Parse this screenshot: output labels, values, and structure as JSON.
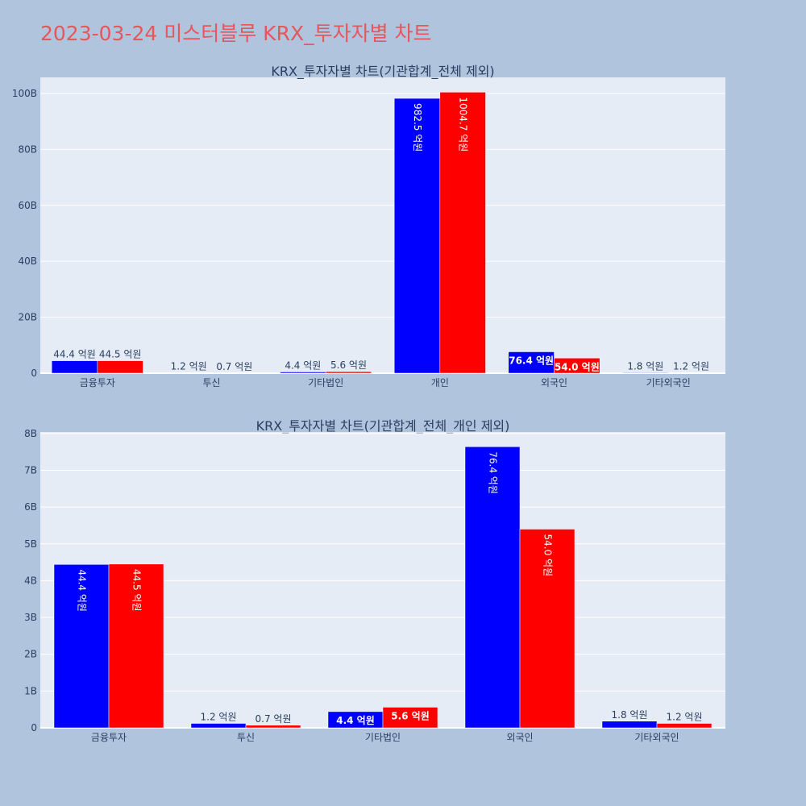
{
  "title": "2023-03-24 미스터블루 KRX_투자자별 차트",
  "colors": {
    "buy": "#0000ff",
    "sell": "#ff0000",
    "plot_bg": "#e5ecf6",
    "page_bg": "#b0c4de",
    "title": "#e8555a",
    "axis_text": "#2a3f5f"
  },
  "chart_data": [
    {
      "type": "bar",
      "title": "KRX_투자자별 차트(기관합계_전체 제외)",
      "categories": [
        "금융투자",
        "투신",
        "기타법인",
        "개인",
        "외국인",
        "기타외국인"
      ],
      "series": [
        {
          "color": "#0000ff",
          "values": [
            4.44,
            0.12,
            0.44,
            98.25,
            7.64,
            0.18
          ],
          "labels": [
            "44.4 억원",
            "1.2 억원",
            "4.4 억원",
            "982.5 억원",
            "76.4 억원",
            "1.8 억원"
          ]
        },
        {
          "color": "#ff0000",
          "values": [
            4.45,
            0.07,
            0.56,
            100.47,
            5.4,
            0.12
          ],
          "labels": [
            "44.5 억원",
            "0.7 억원",
            "5.6 억원",
            "1004.7 억원",
            "54.0 억원",
            "1.2 억원"
          ]
        }
      ],
      "yticks": [
        0,
        20,
        40,
        60,
        80,
        100
      ],
      "ytick_labels": [
        "0",
        "20B",
        "40B",
        "60B",
        "80B",
        "100B"
      ],
      "ylim": [
        0,
        105.76
      ],
      "grid": true
    },
    {
      "type": "bar",
      "title": "KRX_투자자별 차트(기관합계_전체_개인 제외)",
      "categories": [
        "금융투자",
        "투신",
        "기타법인",
        "외국인",
        "기타외국인"
      ],
      "series": [
        {
          "color": "#0000ff",
          "values": [
            4.44,
            0.12,
            0.44,
            7.64,
            0.18
          ],
          "labels": [
            "44.4 억원",
            "1.2 억원",
            "4.4 억원",
            "76.4 억원",
            "1.8 억원"
          ]
        },
        {
          "color": "#ff0000",
          "values": [
            4.45,
            0.07,
            0.56,
            5.4,
            0.12
          ],
          "labels": [
            "44.5 억원",
            "0.7 억원",
            "5.6 억원",
            "54.0 억원",
            "1.2 억원"
          ]
        }
      ],
      "yticks": [
        0,
        1,
        2,
        3,
        4,
        5,
        6,
        7,
        8
      ],
      "ytick_labels": [
        "0",
        "1B",
        "2B",
        "3B",
        "4B",
        "5B",
        "6B",
        "7B",
        "8B"
      ],
      "ylim": [
        0,
        8.04
      ],
      "grid": true
    }
  ]
}
